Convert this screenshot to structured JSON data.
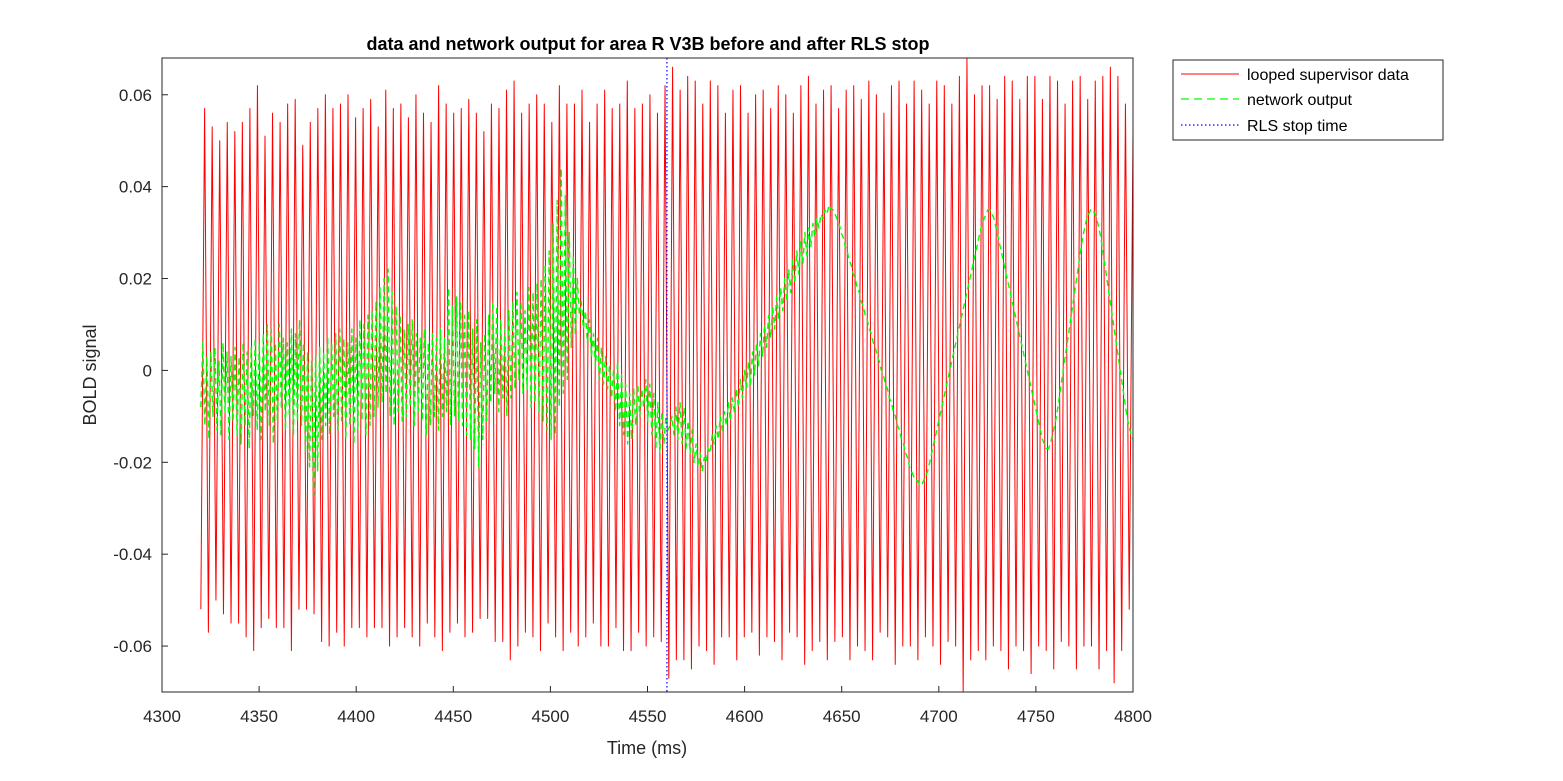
{
  "chart_data": {
    "type": "line",
    "title": "data and network output for area R V3B before and after RLS stop",
    "xlabel": "Time (ms)",
    "ylabel": "BOLD signal",
    "xlim": [
      4300,
      4800
    ],
    "ylim": [
      -0.07,
      0.068
    ],
    "xticks": [
      4300,
      4350,
      4400,
      4450,
      4500,
      4550,
      4600,
      4650,
      4700,
      4750,
      4800
    ],
    "xtick_labels": [
      "4300",
      "4350",
      "4400",
      "4450",
      "4500",
      "4550",
      "4600",
      "4650",
      "4700",
      "4750",
      "4800"
    ],
    "yticks": [
      -0.06,
      -0.04,
      -0.02,
      0,
      0.02,
      0.04,
      0.06
    ],
    "ytick_labels": [
      "-0.06",
      "-0.04",
      "-0.02",
      "0",
      "0.02",
      "0.04",
      "0.06"
    ],
    "grid": false,
    "legend_position": "outside-top-right",
    "series": [
      {
        "name": "looped supervisor data",
        "color": "#ff0000",
        "style": "solid",
        "x_start": 4320,
        "x_end": 4800,
        "sample_interval": 2,
        "values": [
          -0.052,
          0.057,
          -0.057,
          0.053,
          -0.05,
          0.05,
          -0.053,
          0.054,
          -0.055,
          0.052,
          -0.055,
          0.054,
          -0.058,
          0.057,
          -0.061,
          0.062,
          -0.056,
          0.051,
          -0.054,
          0.056,
          -0.056,
          0.054,
          -0.056,
          0.058,
          -0.061,
          0.059,
          -0.052,
          0.049,
          -0.052,
          0.054,
          -0.053,
          0.057,
          -0.059,
          0.06,
          -0.06,
          0.057,
          -0.057,
          0.058,
          -0.06,
          0.06,
          -0.056,
          0.055,
          -0.056,
          0.057,
          -0.058,
          0.059,
          -0.056,
          0.053,
          -0.056,
          0.061,
          -0.06,
          0.057,
          -0.058,
          0.058,
          -0.056,
          0.055,
          -0.058,
          0.06,
          -0.06,
          0.056,
          -0.055,
          0.054,
          -0.058,
          0.062,
          -0.061,
          0.058,
          -0.057,
          0.056,
          -0.055,
          0.057,
          -0.058,
          0.059,
          -0.057,
          0.056,
          -0.054,
          0.052,
          -0.054,
          0.058,
          -0.059,
          0.057,
          -0.059,
          0.061,
          -0.063,
          0.063,
          -0.06,
          0.056,
          -0.057,
          0.058,
          -0.058,
          0.06,
          -0.061,
          0.058,
          -0.055,
          0.054,
          -0.058,
          0.062,
          -0.061,
          0.058,
          -0.057,
          0.058,
          -0.06,
          0.061,
          -0.058,
          0.054,
          -0.055,
          0.058,
          -0.06,
          0.061,
          -0.06,
          0.057,
          -0.056,
          0.058,
          -0.061,
          0.063,
          -0.061,
          0.057,
          -0.057,
          0.058,
          -0.06,
          0.06,
          -0.058,
          0.056,
          -0.059,
          0.062,
          -0.067,
          0.066,
          -0.063,
          0.061,
          -0.063,
          0.064,
          -0.065,
          0.063,
          -0.06,
          0.058,
          -0.061,
          0.063,
          -0.064,
          0.062,
          -0.058,
          0.056,
          -0.058,
          0.061,
          -0.063,
          0.062,
          -0.058,
          0.056,
          -0.057,
          0.06,
          -0.062,
          0.061,
          -0.058,
          0.057,
          -0.059,
          0.062,
          -0.063,
          0.06,
          -0.057,
          0.056,
          -0.058,
          0.062,
          -0.064,
          0.064,
          -0.061,
          0.058,
          -0.059,
          0.061,
          -0.063,
          0.062,
          -0.059,
          0.057,
          -0.058,
          0.061,
          -0.063,
          0.062,
          -0.06,
          0.059,
          -0.061,
          0.063,
          -0.063,
          0.06,
          -0.057,
          0.056,
          -0.058,
          0.062,
          -0.064,
          0.063,
          -0.06,
          0.058,
          -0.06,
          0.063,
          -0.063,
          0.061,
          -0.058,
          0.058,
          -0.06,
          0.063,
          -0.064,
          0.062,
          -0.059,
          0.058,
          -0.06,
          0.064,
          -0.07,
          0.068,
          -0.063,
          0.06,
          -0.061,
          0.062,
          -0.063,
          0.062,
          -0.06,
          0.059,
          -0.061,
          0.064,
          -0.065,
          0.063,
          -0.06,
          0.059,
          -0.061,
          0.064,
          -0.066,
          0.064,
          -0.06,
          0.059,
          -0.061,
          0.064,
          -0.065,
          0.063,
          -0.059,
          0.058,
          -0.06,
          0.063,
          -0.065,
          0.064,
          -0.06,
          0.059,
          -0.06,
          0.063,
          -0.065,
          0.064,
          -0.061,
          0.066,
          -0.068,
          0.064,
          -0.061,
          0.058,
          -0.052,
          0.052
        ]
      },
      {
        "name": "network output",
        "color": "#00ff00",
        "style": "dashed",
        "x_start": 4320,
        "x_end": 4800,
        "sample_interval": 1,
        "values": [
          -0.008,
          0.006,
          -0.012,
          0.003,
          -0.015,
          0.004,
          -0.01,
          0.005,
          -0.013,
          0.002,
          -0.014,
          0.006,
          -0.009,
          0.004,
          -0.015,
          0.003,
          -0.011,
          0.005,
          -0.014,
          0.003,
          -0.016,
          0.006,
          -0.012,
          0.004,
          -0.017,
          0.005,
          -0.01,
          0.007,
          -0.013,
          0.006,
          -0.015,
          0.008,
          -0.009,
          0.01,
          -0.012,
          0.009,
          -0.016,
          0.006,
          -0.011,
          0.01,
          -0.008,
          0.007,
          -0.013,
          0.006,
          -0.01,
          0.009,
          -0.014,
          0.008,
          -0.011,
          0.011,
          -0.012,
          0.006,
          -0.018,
          0.004,
          -0.021,
          0.002,
          -0.027,
          0.003,
          -0.022,
          0.005,
          -0.015,
          0.004,
          -0.012,
          0.007,
          -0.014,
          0.006,
          -0.01,
          0.008,
          -0.013,
          0.009,
          -0.011,
          0.007,
          -0.015,
          0.006,
          -0.012,
          0.009,
          -0.016,
          0.007,
          -0.013,
          0.011,
          -0.011,
          0.01,
          -0.014,
          0.012,
          -0.012,
          0.013,
          -0.01,
          0.015,
          -0.008,
          0.018,
          -0.007,
          0.02,
          -0.005,
          0.022,
          -0.01,
          0.017,
          -0.012,
          0.014,
          -0.009,
          0.012,
          -0.011,
          0.009,
          -0.01,
          0.01,
          -0.008,
          0.011,
          -0.012,
          0.008,
          -0.009,
          0.007,
          -0.011,
          0.009,
          -0.014,
          0.006,
          -0.012,
          0.008,
          -0.01,
          0.007,
          -0.013,
          0.009,
          -0.01,
          0.007,
          -0.009,
          0.018,
          -0.012,
          0.014,
          -0.01,
          0.016,
          -0.011,
          0.015,
          -0.012,
          0.012,
          -0.014,
          0.013,
          -0.015,
          0.009,
          -0.017,
          0.011,
          -0.021,
          0.006,
          -0.015,
          0.008,
          -0.011,
          0.012,
          -0.007,
          0.015,
          -0.005,
          0.014,
          -0.009,
          0.011,
          -0.006,
          0.009,
          -0.01,
          0.013,
          -0.006,
          0.015,
          -0.004,
          0.017,
          -0.002,
          0.015,
          -0.005,
          0.013,
          -0.004,
          0.018,
          -0.008,
          0.017,
          -0.007,
          0.019,
          -0.009,
          0.02,
          -0.011,
          0.023,
          -0.013,
          0.026,
          -0.015,
          0.032,
          -0.014,
          0.037,
          -0.008,
          0.044,
          -0.005,
          0.038,
          -0.002,
          0.03,
          0.005,
          0.025,
          0.008,
          0.02,
          0.012,
          0.015,
          0.009,
          0.013,
          0.006,
          0.011,
          0.003,
          0.008,
          0.001,
          0.007,
          -0.002,
          0.005,
          -0.003,
          0.003,
          -0.004,
          0.001,
          -0.006,
          0.0,
          -0.009,
          0.002,
          -0.012,
          -0.001,
          -0.014,
          -0.003,
          -0.016,
          -0.005,
          -0.015,
          -0.004,
          -0.012,
          -0.003,
          -0.01,
          -0.004,
          -0.008,
          -0.002,
          -0.011,
          -0.003,
          -0.014,
          -0.005,
          -0.017,
          -0.007,
          -0.018,
          -0.009,
          -0.016,
          -0.01,
          -0.013,
          -0.012,
          -0.01,
          -0.014,
          -0.008,
          -0.015,
          -0.007,
          -0.016,
          -0.008,
          -0.017,
          -0.011,
          -0.018,
          -0.013,
          -0.02,
          -0.016,
          -0.021,
          -0.018,
          -0.022,
          -0.019,
          -0.02,
          -0.017,
          -0.018,
          -0.014,
          -0.016,
          -0.012,
          -0.015,
          -0.01,
          -0.013,
          -0.009,
          -0.012,
          -0.007,
          -0.011,
          -0.006,
          -0.009,
          -0.004,
          -0.008,
          -0.002,
          -0.006,
          0.0,
          -0.004,
          0.002,
          -0.003,
          0.004,
          -0.001,
          0.006,
          0.001,
          0.008,
          0.003,
          0.01,
          0.005,
          0.012,
          0.007,
          0.014,
          0.009,
          0.016,
          0.011,
          0.018,
          0.013,
          0.02,
          0.015,
          0.022,
          0.017,
          0.024,
          0.019,
          0.026,
          0.021,
          0.028,
          0.023,
          0.03,
          0.025,
          0.031,
          0.027,
          0.032,
          0.029,
          0.033,
          0.031,
          0.034,
          0.033,
          0.035,
          0.034,
          0.036,
          0.035,
          0.035,
          0.034,
          0.033,
          0.032,
          0.03,
          0.029,
          0.027,
          0.026,
          0.024,
          0.023,
          0.021,
          0.02,
          0.018,
          0.017,
          0.015,
          0.014,
          0.012,
          0.011,
          0.009,
          0.008,
          0.006,
          0.005,
          0.003,
          0.002,
          0.0,
          -0.001,
          -0.003,
          -0.004,
          -0.006,
          -0.007,
          -0.009,
          -0.01,
          -0.012,
          -0.013,
          -0.015,
          -0.016,
          -0.018,
          -0.019,
          -0.021,
          -0.022,
          -0.023,
          -0.024,
          -0.024,
          -0.025,
          -0.025,
          -0.024,
          -0.023,
          -0.022,
          -0.02,
          -0.018,
          -0.016,
          -0.014,
          -0.012,
          -0.01,
          -0.008,
          -0.006,
          -0.004,
          -0.002,
          0.0,
          0.002,
          0.004,
          0.006,
          0.008,
          0.01,
          0.012,
          0.014,
          0.016,
          0.018,
          0.02,
          0.022,
          0.024,
          0.026,
          0.028,
          0.03,
          0.032,
          0.033,
          0.034,
          0.035,
          0.035,
          0.034,
          0.033,
          0.031,
          0.029,
          0.027,
          0.025,
          0.023,
          0.021,
          0.019,
          0.017,
          0.015,
          0.013,
          0.011,
          0.009,
          0.007,
          0.005,
          0.003,
          0.001,
          -0.001,
          -0.003,
          -0.005,
          -0.007,
          -0.009,
          -0.011,
          -0.013,
          -0.015,
          -0.016,
          -0.017,
          -0.017,
          -0.016,
          -0.014,
          -0.012,
          -0.01,
          -0.007,
          -0.004,
          -0.001,
          0.002,
          0.005,
          0.008,
          0.011,
          0.014,
          0.017,
          0.02,
          0.023,
          0.026,
          0.029,
          0.031,
          0.033,
          0.034,
          0.035,
          0.035,
          0.034,
          0.033,
          0.031,
          0.029,
          0.026,
          0.023,
          0.02,
          0.017,
          0.014,
          0.011,
          0.008,
          0.005,
          0.002,
          -0.001,
          -0.004,
          -0.007,
          -0.01,
          -0.012,
          -0.014,
          -0.015
        ]
      },
      {
        "name": "RLS stop time",
        "color": "#0000ff",
        "style": "dotted",
        "x": 4560
      }
    ],
    "legend": [
      "looped supervisor data",
      "network output",
      "RLS stop time"
    ]
  }
}
